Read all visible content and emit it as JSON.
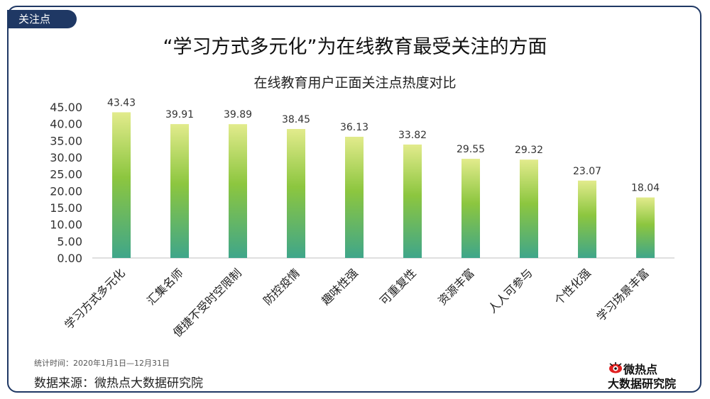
{
  "tag_label": "关注点",
  "main_title": "“学习方式多元化”为在线教育最受关注的方面",
  "chart_title": "在线教育用户正面关注点热度对比",
  "footnote": "统计时间：2020年1月1日—12月31日",
  "source": "数据来源：微热点大数据研究院",
  "logo": {
    "brand": "微热点",
    "sub": "大数据研究院"
  },
  "colors": {
    "frame": "#1f3864",
    "bar_top": "#e2eb8c",
    "bar_mid": "#8cc63f",
    "bar_bottom": "#3fa68a",
    "logo_red": "#e02020"
  },
  "chart_data": {
    "type": "bar",
    "title": "在线教育用户正面关注点热度对比",
    "categories": [
      "学习方式多元化",
      "汇集名师",
      "便捷不受时空限制",
      "防控疫情",
      "趣味性强",
      "可重复性",
      "资源丰富",
      "人人可参与",
      "个性化强",
      "学习场景丰富"
    ],
    "values": [
      43.43,
      39.91,
      39.89,
      38.45,
      36.13,
      33.82,
      29.55,
      29.32,
      23.07,
      18.04
    ],
    "value_labels": [
      "43.43",
      "39.91",
      "39.89",
      "38.45",
      "36.13",
      "33.82",
      "29.55",
      "29.32",
      "23.07",
      "18.04"
    ],
    "yticks": [
      "0.00",
      "5.00",
      "10.00",
      "15.00",
      "20.00",
      "25.00",
      "30.00",
      "35.00",
      "40.00",
      "45.00"
    ],
    "ylim": [
      0,
      45
    ],
    "grid": false,
    "legend": "none"
  }
}
